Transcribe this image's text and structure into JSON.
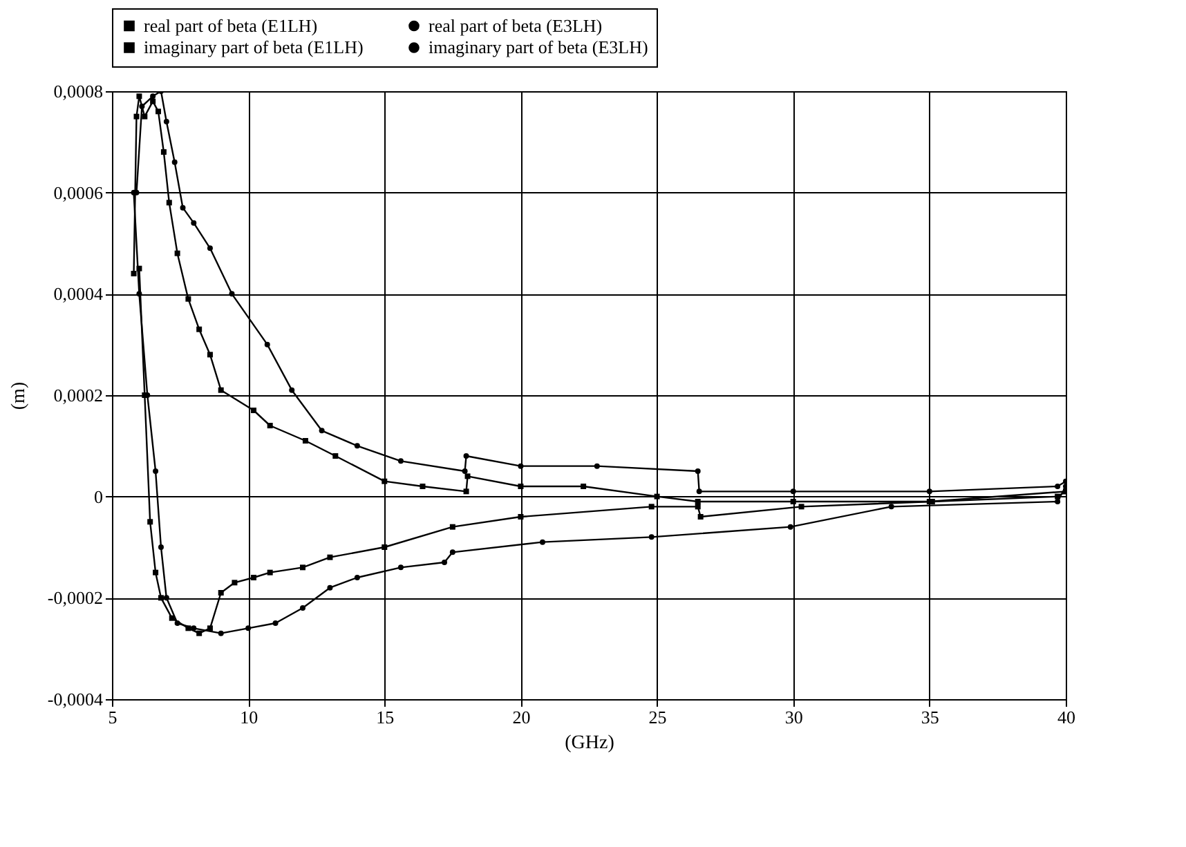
{
  "chart_data": {
    "type": "line",
    "xlabel": "(GHz)",
    "ylabel": "(m)",
    "xlim": [
      5,
      40
    ],
    "xticks": [
      5,
      10,
      15,
      20,
      25,
      30,
      35,
      40
    ],
    "ylim": [
      -0.0004,
      0.0008
    ],
    "yticks": [
      {
        "value": -0.0004,
        "label": "-0,0004"
      },
      {
        "value": -0.0002,
        "label": "-0,0002"
      },
      {
        "value": 0,
        "label": "0"
      },
      {
        "value": 0.0002,
        "label": "0,0002"
      },
      {
        "value": 0.0004,
        "label": "0,0004"
      },
      {
        "value": 0.0006,
        "label": "0,0006"
      },
      {
        "value": 0.0008,
        "label": "0,0008"
      }
    ],
    "grid": true,
    "legend": "top",
    "line_style": "solid",
    "series": [
      {
        "name": "real part of beta (E1LH)",
        "color": "#000000",
        "marker": "square",
        "x": [
          6.0,
          6.2,
          6.4,
          6.6,
          6.8,
          7.2,
          7.8,
          8.2,
          8.6,
          9.0,
          9.5,
          10.2,
          10.8,
          12.0,
          13.0,
          15.0,
          17.5,
          20,
          24.8,
          26.5,
          26.6,
          30.3,
          35.1,
          39.7,
          40
        ],
        "values": [
          0.00045,
          0.0002,
          -5e-05,
          -0.00015,
          -0.0002,
          -0.00024,
          -0.00026,
          -0.00027,
          -0.00026,
          -0.00019,
          -0.00017,
          -0.00016,
          -0.00015,
          -0.00014,
          -0.00012,
          -0.0001,
          -6e-05,
          -4e-05,
          -2e-05,
          -2e-05,
          -4e-05,
          -2e-05,
          -1e-05,
          0,
          1e-05
        ]
      },
      {
        "name": "real part of beta (E3LH)",
        "color": "#000000",
        "marker": "circle",
        "x": [
          5.8,
          6.0,
          6.3,
          6.6,
          6.8,
          7.0,
          7.4,
          8,
          9,
          10,
          11,
          12,
          13,
          14,
          15.6,
          17.2,
          17.5,
          20.8,
          24.8,
          29.9,
          33.6,
          39.7,
          40
        ],
        "values": [
          0.0006,
          0.0004,
          0.0002,
          5e-05,
          -0.0001,
          -0.0002,
          -0.00025,
          -0.00026,
          -0.00027,
          -0.00026,
          -0.00025,
          -0.00022,
          -0.00018,
          -0.00016,
          -0.00014,
          -0.00013,
          -0.00011,
          -9e-05,
          -8e-05,
          -6e-05,
          -2e-05,
          -1e-05,
          2e-05
        ]
      },
      {
        "name": "imaginary part of beta (E1LH)",
        "color": "#000000",
        "marker": "square",
        "x": [
          5.8,
          5.9,
          6.0,
          6.2,
          6.5,
          6.7,
          6.9,
          7.1,
          7.4,
          7.8,
          8.2,
          8.6,
          9.0,
          10.2,
          10.8,
          12.1,
          13.2,
          15.0,
          16.4,
          18.0,
          18.05,
          20,
          22.3,
          25,
          26.5,
          30,
          35,
          40
        ],
        "values": [
          0.00044,
          0.00075,
          0.00079,
          0.00075,
          0.00078,
          0.00076,
          0.00068,
          0.00058,
          0.00048,
          0.00039,
          0.00033,
          0.00028,
          0.00021,
          0.00017,
          0.00014,
          0.00011,
          8e-05,
          3e-05,
          2e-05,
          1e-05,
          4e-05,
          2e-05,
          2e-05,
          0,
          -1e-05,
          -1e-05,
          -1e-05,
          1e-05
        ]
      },
      {
        "name": "imaginary part of beta (E3LH)",
        "color": "#000000",
        "marker": "circle",
        "x": [
          5.9,
          6.1,
          6.5,
          6.8,
          7.0,
          7.3,
          7.6,
          8.0,
          8.6,
          9.4,
          10.7,
          11.6,
          12.7,
          14.0,
          15.6,
          17.95,
          18.0,
          20,
          22.8,
          26.5,
          26.55,
          30,
          35,
          39.7,
          40
        ],
        "values": [
          0.0006,
          0.00077,
          0.00079,
          0.0008,
          0.00074,
          0.00066,
          0.00057,
          0.00054,
          0.00049,
          0.0004,
          0.0003,
          0.00021,
          0.00013,
          0.0001,
          7e-05,
          5e-05,
          8e-05,
          6e-05,
          6e-05,
          5e-05,
          1e-05,
          1e-05,
          1e-05,
          2e-05,
          3e-05
        ]
      }
    ]
  }
}
